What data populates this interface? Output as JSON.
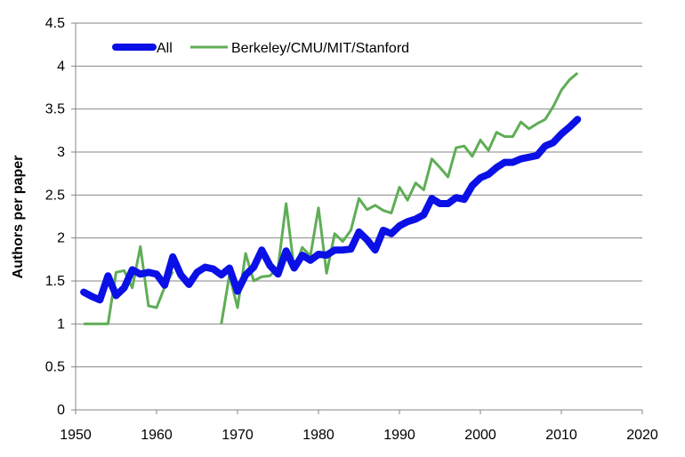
{
  "chart_data": {
    "type": "line",
    "title": "",
    "xlabel": "",
    "ylabel": "Authors per paper",
    "xlim": [
      1950,
      2020
    ],
    "ylim": [
      0,
      4.5
    ],
    "x_ticks": [
      1950,
      1960,
      1970,
      1980,
      1990,
      2000,
      2010,
      2020
    ],
    "y_ticks": [
      "0",
      "0.5",
      "1",
      "1.5",
      "2",
      "2.5",
      "3",
      "3.5",
      "4",
      "4.5"
    ],
    "grid": "horizontal",
    "legend_position": "top-left",
    "series": [
      {
        "name": "All",
        "color": "#0a10e6",
        "x": [
          1951,
          1952,
          1953,
          1954,
          1955,
          1956,
          1957,
          1958,
          1959,
          1960,
          1961,
          1962,
          1963,
          1964,
          1965,
          1966,
          1967,
          1968,
          1969,
          1970,
          1971,
          1972,
          1973,
          1974,
          1975,
          1976,
          1977,
          1978,
          1979,
          1980,
          1981,
          1982,
          1983,
          1984,
          1985,
          1986,
          1987,
          1988,
          1989,
          1990,
          1991,
          1992,
          1993,
          1994,
          1995,
          1996,
          1997,
          1998,
          1999,
          2000,
          2001,
          2002,
          2003,
          2004,
          2005,
          2006,
          2007,
          2008,
          2009,
          2010,
          2011,
          2012
        ],
        "values": [
          1.37,
          1.32,
          1.28,
          1.56,
          1.33,
          1.42,
          1.63,
          1.58,
          1.6,
          1.58,
          1.45,
          1.78,
          1.57,
          1.46,
          1.6,
          1.66,
          1.64,
          1.57,
          1.65,
          1.38,
          1.57,
          1.66,
          1.86,
          1.68,
          1.58,
          1.85,
          1.65,
          1.8,
          1.74,
          1.81,
          1.8,
          1.86,
          1.86,
          1.87,
          2.07,
          1.98,
          1.86,
          2.09,
          2.05,
          2.14,
          2.19,
          2.22,
          2.27,
          2.46,
          2.4,
          2.4,
          2.47,
          2.45,
          2.61,
          2.7,
          2.74,
          2.82,
          2.88,
          2.88,
          2.92,
          2.94,
          2.96,
          3.07,
          3.11,
          3.21,
          3.29,
          3.38
        ]
      },
      {
        "name": "Berkeley/CMU/MIT/Stanford",
        "color": "#5fad56",
        "segments": [
          {
            "x": [
              1951,
              1952,
              1953,
              1954,
              1955,
              1956,
              1957,
              1958,
              1959,
              1960,
              1961,
              1962
            ],
            "values": [
              1.0,
              1.0,
              1.0,
              1.0,
              1.6,
              1.62,
              1.42,
              1.9,
              1.21,
              1.19,
              1.43,
              1.61
            ]
          },
          {
            "x": [
              1968,
              1969,
              1970,
              1971,
              1972,
              1973,
              1974,
              1975,
              1976,
              1977,
              1978,
              1979,
              1980,
              1981,
              1982,
              1983,
              1984,
              1985,
              1986,
              1987,
              1988,
              1989,
              1990,
              1991,
              1992,
              1993,
              1994,
              1995,
              1996,
              1997,
              1998,
              1999,
              2000,
              2001,
              2002,
              2003,
              2004,
              2005,
              2006,
              2007,
              2008,
              2009,
              2010,
              2011,
              2012
            ],
            "values": [
              1.0,
              1.57,
              1.19,
              1.82,
              1.5,
              1.55,
              1.56,
              1.65,
              2.4,
              1.64,
              1.89,
              1.79,
              2.35,
              1.59,
              2.05,
              1.96,
              2.09,
              2.46,
              2.33,
              2.38,
              2.32,
              2.29,
              2.59,
              2.44,
              2.64,
              2.56,
              2.92,
              2.82,
              2.71,
              3.05,
              3.07,
              2.95,
              3.14,
              3.02,
              3.23,
              3.18,
              3.18,
              3.35,
              3.27,
              3.33,
              3.38,
              3.53,
              3.72,
              3.84,
              3.92
            ]
          }
        ]
      }
    ]
  }
}
